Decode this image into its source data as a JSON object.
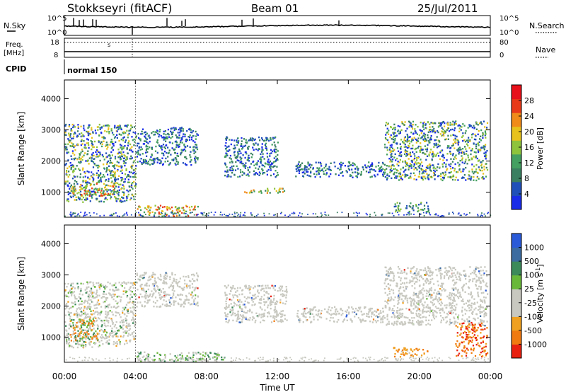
{
  "header": {
    "title": "Stokkseyri (fitACF)",
    "beam": "Beam 01",
    "date": "25/Jul/2011"
  },
  "top_panels": {
    "nsky_label": "N.Sky",
    "nsearch_label": "N.Search",
    "noise_ticks_left": [
      "10^5",
      "10^0"
    ],
    "noise_ticks_right": [
      "10^5",
      "10^0"
    ],
    "freq_label_1": "Freq.",
    "freq_label_2": "[MHz]",
    "freq_ticks": [
      "18",
      "8"
    ],
    "nave_label": "Nave",
    "nave_ticks": [
      "80",
      "0"
    ],
    "cpid_label": "CPID",
    "cpid_value": "normal 150"
  },
  "colors": {
    "power_scale": [
      "#1a2ce8",
      "#1f4fb8",
      "#3a8060",
      "#44a060",
      "#8ec43c",
      "#e8c21c",
      "#f08a18",
      "#e83a18",
      "#e8101a"
    ],
    "velocity_scale": [
      "#2a5ad8",
      "#3c6ca0",
      "#3c8a5a",
      "#6ab83a",
      "#c8c8c0",
      "#c8c8c0",
      "#f0a020",
      "#f07a10",
      "#e82010"
    ]
  },
  "chart_data": [
    {
      "type": "heatmap",
      "title": "",
      "xlabel": "Time UT",
      "ylabel": "Slant Range [km]",
      "x_ticks": [
        "00:00",
        "04:00",
        "08:00",
        "12:00",
        "16:00",
        "20:00",
        "00:00"
      ],
      "y_ticks": [
        "1000",
        "2000",
        "3000",
        "4000"
      ],
      "xlim": [
        0,
        24
      ],
      "ylim": [
        200,
        4600
      ],
      "colorbar_label": "Power [dB]",
      "colorbar_ticks": [
        "4",
        "8",
        "12",
        "16",
        "20",
        "24",
        "28"
      ],
      "colorbar_range": [
        0,
        32
      ],
      "scatter_regions": [
        {
          "t0": 0.0,
          "t1": 4.0,
          "r0": 700,
          "r1": 3200,
          "level": "mixed"
        },
        {
          "t0": 0.2,
          "t1": 2.8,
          "r0": 900,
          "r1": 1300,
          "level": "high"
        },
        {
          "t0": 4.0,
          "t1": 7.5,
          "r0": 1900,
          "r1": 3100,
          "level": "low-mid"
        },
        {
          "t0": 4.0,
          "t1": 7.5,
          "r0": 250,
          "r1": 600,
          "level": "high"
        },
        {
          "t0": 9.0,
          "t1": 12.0,
          "r0": 1500,
          "r1": 2800,
          "level": "low-mid"
        },
        {
          "t0": 10.0,
          "t1": 12.5,
          "r0": 1000,
          "r1": 1150,
          "level": "mid-high"
        },
        {
          "t0": 13.0,
          "t1": 18.0,
          "r0": 1500,
          "r1": 2000,
          "level": "low-mid"
        },
        {
          "t0": 18.0,
          "t1": 23.8,
          "r0": 1400,
          "r1": 3300,
          "level": "mixed"
        },
        {
          "t0": 18.5,
          "t1": 20.5,
          "r0": 400,
          "r1": 700,
          "level": "mid"
        }
      ]
    },
    {
      "type": "heatmap",
      "title": "",
      "xlabel": "Time UT",
      "ylabel": "Slant Range [km]",
      "x_ticks": [
        "00:00",
        "04:00",
        "08:00",
        "12:00",
        "16:00",
        "20:00",
        "00:00"
      ],
      "y_ticks": [
        "1000",
        "2000",
        "3000",
        "4000"
      ],
      "xlim": [
        0,
        24
      ],
      "ylim": [
        200,
        4600
      ],
      "colorbar_label": "Velocity [m s^-1]",
      "colorbar_ticks": [
        "1000",
        "500",
        "100",
        "25",
        "-25",
        "-100",
        "-500",
        "-1000"
      ],
      "scatter_regions": [
        {
          "t0": 0.0,
          "t1": 4.0,
          "r0": 700,
          "r1": 2800,
          "level": "gray+green+orange"
        },
        {
          "t0": 0.3,
          "t1": 2.0,
          "r0": 900,
          "r1": 1600,
          "level": "orange-green"
        },
        {
          "t0": 4.0,
          "t1": 7.5,
          "r0": 2000,
          "r1": 3100,
          "level": "gray"
        },
        {
          "t0": 4.0,
          "t1": 9.0,
          "r0": 250,
          "r1": 550,
          "level": "green"
        },
        {
          "t0": 9.0,
          "t1": 12.5,
          "r0": 1500,
          "r1": 2700,
          "level": "gray"
        },
        {
          "t0": 13.0,
          "t1": 18.0,
          "r0": 1500,
          "r1": 2000,
          "level": "gray"
        },
        {
          "t0": 18.0,
          "t1": 23.8,
          "r0": 1400,
          "r1": 3300,
          "level": "gray"
        },
        {
          "t0": 18.5,
          "t1": 20.5,
          "r0": 400,
          "r1": 700,
          "level": "orange"
        },
        {
          "t0": 22.0,
          "t1": 23.8,
          "r0": 400,
          "r1": 1500,
          "level": "orange-red"
        }
      ]
    }
  ]
}
